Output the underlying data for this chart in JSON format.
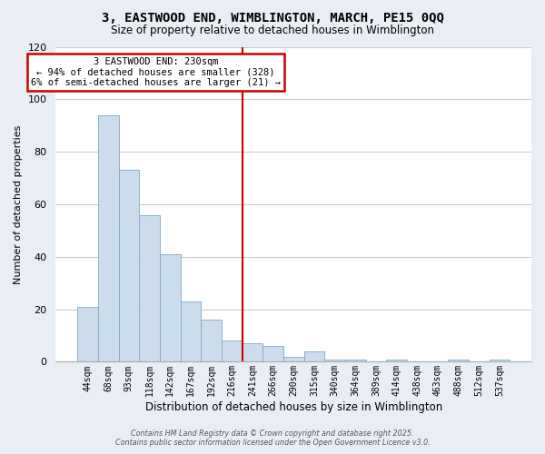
{
  "title": "3, EASTWOOD END, WIMBLINGTON, MARCH, PE15 0QQ",
  "subtitle": "Size of property relative to detached houses in Wimblington",
  "xlabel": "Distribution of detached houses by size in Wimblington",
  "ylabel": "Number of detached properties",
  "bin_labels": [
    "44sqm",
    "68sqm",
    "93sqm",
    "118sqm",
    "142sqm",
    "167sqm",
    "192sqm",
    "216sqm",
    "241sqm",
    "266sqm",
    "290sqm",
    "315sqm",
    "340sqm",
    "364sqm",
    "389sqm",
    "414sqm",
    "438sqm",
    "463sqm",
    "488sqm",
    "512sqm",
    "537sqm"
  ],
  "bar_values": [
    21,
    94,
    73,
    56,
    41,
    23,
    16,
    8,
    7,
    6,
    2,
    4,
    1,
    1,
    0,
    1,
    0,
    0,
    1,
    0,
    1
  ],
  "bar_color": "#ccdcec",
  "bar_edge_color": "#7aaac8",
  "vline_color": "#cc0000",
  "ylim": [
    0,
    120
  ],
  "yticks": [
    0,
    20,
    40,
    60,
    80,
    100,
    120
  ],
  "annotation_title": "3 EASTWOOD END: 230sqm",
  "annotation_line1": "← 94% of detached houses are smaller (328)",
  "annotation_line2": "6% of semi-detached houses are larger (21) →",
  "annotation_box_facecolor": "#ffffff",
  "annotation_box_edgecolor": "#cc0000",
  "footer_line1": "Contains HM Land Registry data © Crown copyright and database right 2025.",
  "footer_line2": "Contains public sector information licensed under the Open Government Licence v3.0.",
  "plot_bg_color": "#ffffff",
  "fig_bg_color": "#e8eef4",
  "grid_color": "#cccccc",
  "vline_index": 8
}
